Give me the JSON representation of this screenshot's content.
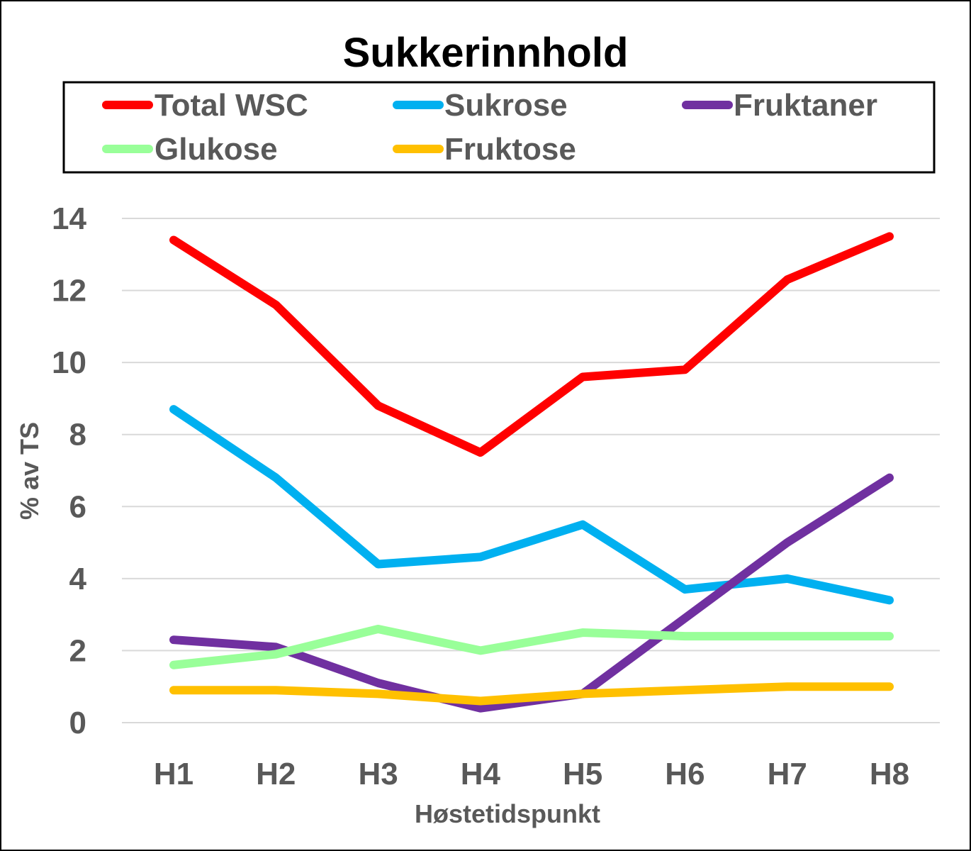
{
  "chart_data": {
    "type": "line",
    "title": "Sukkerinnhold",
    "xlabel": "Høstetidspunkt",
    "ylabel": "% av TS",
    "categories": [
      "H1",
      "H2",
      "H3",
      "H4",
      "H5",
      "H6",
      "H7",
      "H8"
    ],
    "ylim": [
      0,
      14
    ],
    "yticks": [
      0,
      2,
      4,
      6,
      8,
      10,
      12,
      14
    ],
    "grid": true,
    "legend_position": "top",
    "series": [
      {
        "name": "Total WSC",
        "color": "#ff0000",
        "values": [
          13.4,
          11.6,
          8.8,
          7.5,
          9.6,
          9.8,
          12.3,
          13.5
        ]
      },
      {
        "name": "Sukrose",
        "color": "#00b0f0",
        "values": [
          8.7,
          6.8,
          4.4,
          4.6,
          5.5,
          3.7,
          4.0,
          3.4
        ]
      },
      {
        "name": "Fruktaner",
        "color": "#7030a0",
        "values": [
          2.3,
          2.1,
          1.1,
          0.4,
          0.8,
          2.9,
          5.0,
          6.8
        ]
      },
      {
        "name": "Glukose",
        "color": "#99ff99",
        "values": [
          1.6,
          1.9,
          2.6,
          2.0,
          2.5,
          2.4,
          2.4,
          2.4
        ]
      },
      {
        "name": "Fruktose",
        "color": "#ffc000",
        "values": [
          0.9,
          0.9,
          0.8,
          0.6,
          0.8,
          0.9,
          1.0,
          1.0
        ]
      }
    ]
  }
}
